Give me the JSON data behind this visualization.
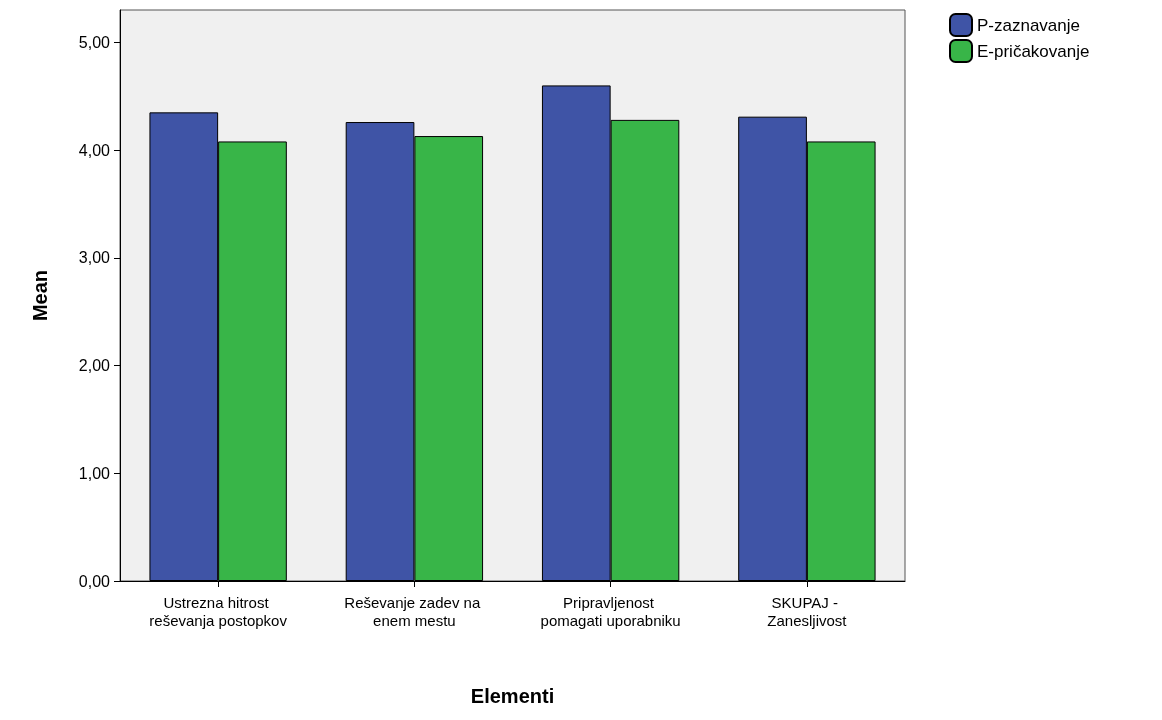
{
  "chart_data": {
    "type": "bar",
    "xlabel": "Elementi",
    "ylabel": "Mean",
    "categories": [
      "Ustrezna hitrost reševanja postopkov",
      "Reševanje zadev na enem mestu",
      "Pripravljenost pomagati uporabniku",
      "SKUPAJ - Zanesljivost"
    ],
    "series": [
      {
        "name": "P-zaznavanje",
        "color": "#3f54a6",
        "values": [
          4.35,
          4.26,
          4.6,
          4.31
        ]
      },
      {
        "name": "E-pričakovanje",
        "color": "#38b548",
        "values": [
          4.08,
          4.13,
          4.28,
          4.08
        ]
      }
    ],
    "ylim": [
      0,
      5.3
    ],
    "yticks": [
      {
        "value": 0,
        "label": "0,00"
      },
      {
        "value": 1,
        "label": "1,00"
      },
      {
        "value": 2,
        "label": "2,00"
      },
      {
        "value": 3,
        "label": "3,00"
      },
      {
        "value": 4,
        "label": "4,00"
      },
      {
        "value": 5,
        "label": "5,00"
      }
    ],
    "grid": false,
    "legend": "top right"
  }
}
